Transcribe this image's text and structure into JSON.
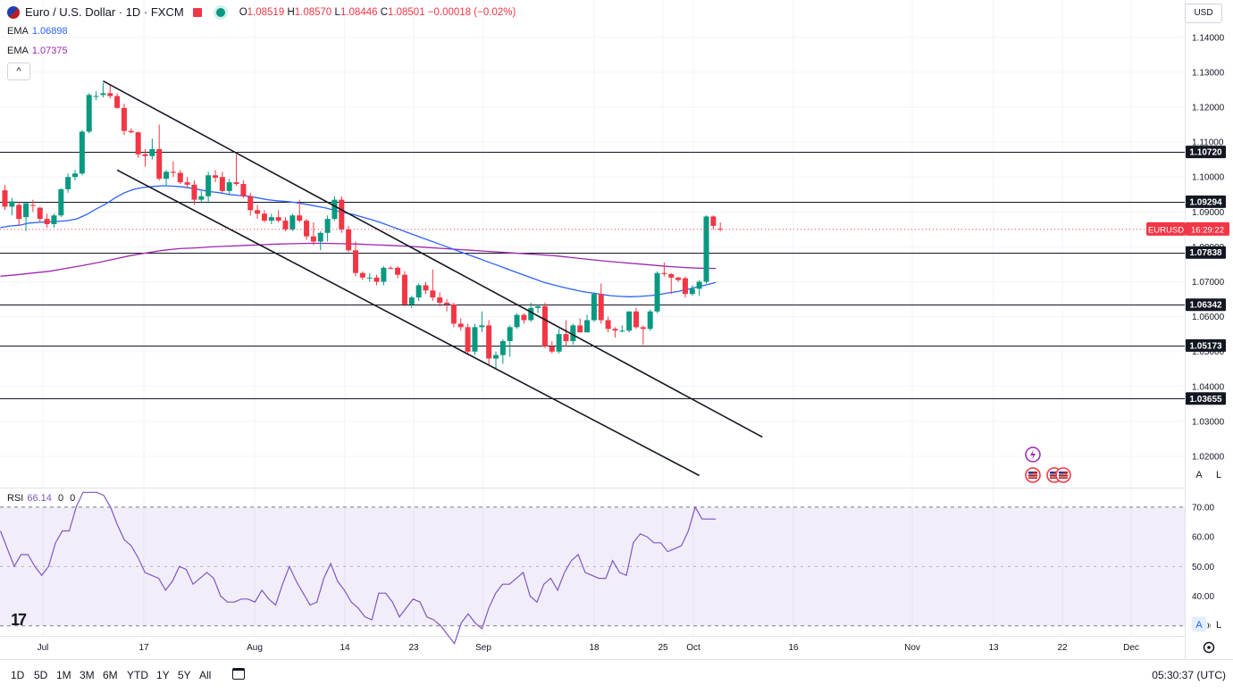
{
  "header": {
    "symbol": "Euro / U.S. Dollar · 1D · FXCM",
    "ohlc_o": "1.08519",
    "ohlc_h": "1.08570",
    "ohlc_l": "1.08446",
    "ohlc_c": "1.08501",
    "change": "−0.00018 (−0.02%)",
    "o_label": "O",
    "h_label": "H",
    "l_label": "L",
    "c_label": "C"
  },
  "ema1": {
    "label": "EMA",
    "value": "1.06898",
    "color": "#2962ff"
  },
  "ema2": {
    "label": "EMA",
    "value": "1.07375",
    "color": "#9c27b0"
  },
  "collapse_label": "^",
  "currency": "USD",
  "rsi_panel": {
    "label": "RSI",
    "value": "66.14",
    "extra1": "0",
    "extra2": "0"
  },
  "price_badge": {
    "symbol": "EURUSD",
    "countdown": "16:29:22"
  },
  "timeframes": [
    "1D",
    "5D",
    "1M",
    "3M",
    "6M",
    "YTD",
    "1Y",
    "5Y",
    "All"
  ],
  "clock": "05:30:37 (UTC)",
  "scale_buttons": {
    "auto": "A",
    "log": "L"
  },
  "logo": "17",
  "chart_data": {
    "type": "candlestick",
    "symbol": "EURUSD",
    "x_ticks": [
      "Jul",
      "17",
      "Aug",
      "14",
      "23",
      "Sep",
      "18",
      "25",
      "Oct",
      "16",
      "Nov",
      "13",
      "22",
      "Dec"
    ],
    "y_ticks": [
      "1.14000",
      "1.13000",
      "1.12000",
      "1.11000",
      "1.10000",
      "1.09000",
      "1.08000",
      "1.07000",
      "1.06000",
      "1.05000",
      "1.04000",
      "1.03000",
      "1.02000"
    ],
    "ylim": [
      1.0113,
      1.1507
    ],
    "horizontal_levels": [
      "1.10720",
      "1.09294",
      "1.07838",
      "1.06342",
      "1.05173",
      "1.03655"
    ],
    "candles": [
      {
        "o": 1.0962,
        "h": 1.0978,
        "l": 1.0905,
        "c": 1.0915
      },
      {
        "o": 1.0915,
        "h": 1.094,
        "l": 1.089,
        "c": 1.093
      },
      {
        "o": 1.092,
        "h": 1.093,
        "l": 1.086,
        "c": 1.088
      },
      {
        "o": 1.0885,
        "h": 1.0925,
        "l": 1.0845,
        "c": 1.0925
      },
      {
        "o": 1.092,
        "h": 1.0935,
        "l": 1.09,
        "c": 1.0918
      },
      {
        "o": 1.0912,
        "h": 1.0915,
        "l": 1.0872,
        "c": 1.088
      },
      {
        "o": 1.088,
        "h": 1.0895,
        "l": 1.0855,
        "c": 1.0865
      },
      {
        "o": 1.0865,
        "h": 1.0895,
        "l": 1.0855,
        "c": 1.089
      },
      {
        "o": 1.089,
        "h": 1.0968,
        "l": 1.0885,
        "c": 1.0965
      },
      {
        "o": 1.0965,
        "h": 1.101,
        "l": 1.0955,
        "c": 1.1
      },
      {
        "o": 1.1,
        "h": 1.102,
        "l": 1.099,
        "c": 1.101
      },
      {
        "o": 1.101,
        "h": 1.1135,
        "l": 1.1005,
        "c": 1.113
      },
      {
        "o": 1.113,
        "h": 1.124,
        "l": 1.1125,
        "c": 1.1235
      },
      {
        "o": 1.123,
        "h": 1.1245,
        "l": 1.122,
        "c": 1.1232
      },
      {
        "o": 1.1235,
        "h": 1.127,
        "l": 1.1228,
        "c": 1.124
      },
      {
        "o": 1.124,
        "h": 1.1265,
        "l": 1.1225,
        "c": 1.1232
      },
      {
        "o": 1.1232,
        "h": 1.124,
        "l": 1.1195,
        "c": 1.1198
      },
      {
        "o": 1.1198,
        "h": 1.121,
        "l": 1.112,
        "c": 1.1132
      },
      {
        "o": 1.1132,
        "h": 1.114,
        "l": 1.1125,
        "c": 1.1128
      },
      {
        "o": 1.1128,
        "h": 1.113,
        "l": 1.1055,
        "c": 1.1065
      },
      {
        "o": 1.1065,
        "h": 1.108,
        "l": 1.103,
        "c": 1.106
      },
      {
        "o": 1.106,
        "h": 1.111,
        "l": 1.105,
        "c": 1.108
      },
      {
        "o": 1.108,
        "h": 1.115,
        "l": 1.099,
        "c": 1.0995
      },
      {
        "o": 1.0995,
        "h": 1.102,
        "l": 1.0975,
        "c": 1.1015
      },
      {
        "o": 1.1015,
        "h": 1.1045,
        "l": 1.1,
        "c": 1.1012
      },
      {
        "o": 1.1012,
        "h": 1.102,
        "l": 1.098,
        "c": 1.0985
      },
      {
        "o": 1.0985,
        "h": 1.1,
        "l": 1.097,
        "c": 1.0978
      },
      {
        "o": 1.0978,
        "h": 1.099,
        "l": 1.092,
        "c": 1.0935
      },
      {
        "o": 1.0935,
        "h": 1.096,
        "l": 1.0925,
        "c": 1.0945
      },
      {
        "o": 1.0945,
        "h": 1.1015,
        "l": 1.0925,
        "c": 1.1005
      },
      {
        "o": 1.1005,
        "h": 1.102,
        "l": 1.0985,
        "c": 1.0998
      },
      {
        "o": 1.1,
        "h": 1.1015,
        "l": 1.0955,
        "c": 1.096
      },
      {
        "o": 1.096,
        "h": 1.0995,
        "l": 1.095,
        "c": 1.0985
      },
      {
        "o": 1.0985,
        "h": 1.1065,
        "l": 1.0975,
        "c": 1.098
      },
      {
        "o": 1.098,
        "h": 1.099,
        "l": 1.094,
        "c": 1.0945
      },
      {
        "o": 1.0945,
        "h": 1.0955,
        "l": 1.089,
        "c": 1.0905
      },
      {
        "o": 1.0905,
        "h": 1.092,
        "l": 1.088,
        "c": 1.0895
      },
      {
        "o": 1.0895,
        "h": 1.0905,
        "l": 1.087,
        "c": 1.0875
      },
      {
        "o": 1.0875,
        "h": 1.0895,
        "l": 1.0865,
        "c": 1.0885
      },
      {
        "o": 1.0885,
        "h": 1.0905,
        "l": 1.087,
        "c": 1.0875
      },
      {
        "o": 1.0875,
        "h": 1.0885,
        "l": 1.0845,
        "c": 1.085
      },
      {
        "o": 1.085,
        "h": 1.0895,
        "l": 1.0845,
        "c": 1.089
      },
      {
        "o": 1.089,
        "h": 1.0935,
        "l": 1.087,
        "c": 1.0875
      },
      {
        "o": 1.0875,
        "h": 1.088,
        "l": 1.082,
        "c": 1.083
      },
      {
        "o": 1.083,
        "h": 1.087,
        "l": 1.0805,
        "c": 1.0815
      },
      {
        "o": 1.0815,
        "h": 1.0845,
        "l": 1.079,
        "c": 1.084
      },
      {
        "o": 1.084,
        "h": 1.089,
        "l": 1.0815,
        "c": 1.088
      },
      {
        "o": 1.088,
        "h": 1.0945,
        "l": 1.0875,
        "c": 1.0935
      },
      {
        "o": 1.0935,
        "h": 1.0945,
        "l": 1.084,
        "c": 1.085
      },
      {
        "o": 1.085,
        "h": 1.086,
        "l": 1.0785,
        "c": 1.079
      },
      {
        "o": 1.079,
        "h": 1.0815,
        "l": 1.0715,
        "c": 1.0725
      },
      {
        "o": 1.0725,
        "h": 1.073,
        "l": 1.0705,
        "c": 1.0712
      },
      {
        "o": 1.0712,
        "h": 1.0725,
        "l": 1.07,
        "c": 1.0712
      },
      {
        "o": 1.0712,
        "h": 1.072,
        "l": 1.069,
        "c": 1.07
      },
      {
        "o": 1.07,
        "h": 1.0745,
        "l": 1.069,
        "c": 1.074
      },
      {
        "o": 1.074,
        "h": 1.0745,
        "l": 1.0735,
        "c": 1.0738
      },
      {
        "o": 1.074,
        "h": 1.0745,
        "l": 1.071,
        "c": 1.072
      },
      {
        "o": 1.072,
        "h": 1.073,
        "l": 1.063,
        "c": 1.0635
      },
      {
        "o": 1.0635,
        "h": 1.066,
        "l": 1.0625,
        "c": 1.0655
      },
      {
        "o": 1.0655,
        "h": 1.0695,
        "l": 1.0645,
        "c": 1.069
      },
      {
        "o": 1.069,
        "h": 1.07,
        "l": 1.0665,
        "c": 1.0675
      },
      {
        "o": 1.0675,
        "h": 1.0735,
        "l": 1.0645,
        "c": 1.0655
      },
      {
        "o": 1.0655,
        "h": 1.067,
        "l": 1.063,
        "c": 1.064
      },
      {
        "o": 1.064,
        "h": 1.065,
        "l": 1.0615,
        "c": 1.0635
      },
      {
        "o": 1.0635,
        "h": 1.064,
        "l": 1.057,
        "c": 1.058
      },
      {
        "o": 1.058,
        "h": 1.0595,
        "l": 1.056,
        "c": 1.057
      },
      {
        "o": 1.057,
        "h": 1.058,
        "l": 1.049,
        "c": 1.05
      },
      {
        "o": 1.05,
        "h": 1.058,
        "l": 1.049,
        "c": 1.057
      },
      {
        "o": 1.057,
        "h": 1.0615,
        "l": 1.0555,
        "c": 1.0575
      },
      {
        "o": 1.0575,
        "h": 1.059,
        "l": 1.046,
        "c": 1.048
      },
      {
        "o": 1.048,
        "h": 1.05,
        "l": 1.045,
        "c": 1.049
      },
      {
        "o": 1.049,
        "h": 1.0535,
        "l": 1.0465,
        "c": 1.053
      },
      {
        "o": 1.053,
        "h": 1.0575,
        "l": 1.0485,
        "c": 1.057
      },
      {
        "o": 1.057,
        "h": 1.061,
        "l": 1.0565,
        "c": 1.0605
      },
      {
        "o": 1.0605,
        "h": 1.061,
        "l": 1.058,
        "c": 1.059
      },
      {
        "o": 1.059,
        "h": 1.064,
        "l": 1.0585,
        "c": 1.0625
      },
      {
        "o": 1.0625,
        "h": 1.0635,
        "l": 1.061,
        "c": 1.063
      },
      {
        "o": 1.063,
        "h": 1.064,
        "l": 1.051,
        "c": 1.0515
      },
      {
        "o": 1.0515,
        "h": 1.053,
        "l": 1.0495,
        "c": 1.05
      },
      {
        "o": 1.05,
        "h": 1.0565,
        "l": 1.0495,
        "c": 1.055
      },
      {
        "o": 1.055,
        "h": 1.059,
        "l": 1.0515,
        "c": 1.053
      },
      {
        "o": 1.053,
        "h": 1.058,
        "l": 1.052,
        "c": 1.0575
      },
      {
        "o": 1.0575,
        "h": 1.0595,
        "l": 1.0555,
        "c": 1.0555
      },
      {
        "o": 1.0555,
        "h": 1.0605,
        "l": 1.0555,
        "c": 1.059
      },
      {
        "o": 1.059,
        "h": 1.067,
        "l": 1.0585,
        "c": 1.0665
      },
      {
        "o": 1.0665,
        "h": 1.0695,
        "l": 1.058,
        "c": 1.059
      },
      {
        "o": 1.059,
        "h": 1.06,
        "l": 1.0555,
        "c": 1.0565
      },
      {
        "o": 1.0565,
        "h": 1.057,
        "l": 1.054,
        "c": 1.056
      },
      {
        "o": 1.056,
        "h": 1.0575,
        "l": 1.0555,
        "c": 1.056
      },
      {
        "o": 1.056,
        "h": 1.0615,
        "l": 1.0555,
        "c": 1.0615
      },
      {
        "o": 1.0615,
        "h": 1.0625,
        "l": 1.0565,
        "c": 1.057
      },
      {
        "o": 1.057,
        "h": 1.0575,
        "l": 1.052,
        "c": 1.0565
      },
      {
        "o": 1.0565,
        "h": 1.062,
        "l": 1.056,
        "c": 1.0615
      },
      {
        "o": 1.0615,
        "h": 1.073,
        "l": 1.061,
        "c": 1.0725
      },
      {
        "o": 1.0725,
        "h": 1.0755,
        "l": 1.0715,
        "c": 1.0722
      },
      {
        "o": 1.0722,
        "h": 1.0725,
        "l": 1.0665,
        "c": 1.0712
      },
      {
        "o": 1.0712,
        "h": 1.0715,
        "l": 1.07,
        "c": 1.0705
      },
      {
        "o": 1.071,
        "h": 1.0715,
        "l": 1.0655,
        "c": 1.0665
      },
      {
        "o": 1.0665,
        "h": 1.069,
        "l": 1.066,
        "c": 1.068
      },
      {
        "o": 1.068,
        "h": 1.0705,
        "l": 1.066,
        "c": 1.07
      },
      {
        "o": 1.07,
        "h": 1.089,
        "l": 1.0695,
        "c": 1.0887
      },
      {
        "o": 1.0887,
        "h": 1.089,
        "l": 1.085,
        "c": 1.086
      },
      {
        "o": 1.0852,
        "h": 1.087,
        "l": 1.0845,
        "c": 1.085
      }
    ],
    "ema_fast": [
      1.0855,
      1.086,
      1.0862,
      1.0868,
      1.087,
      1.0872,
      1.0873,
      1.0875,
      1.088,
      1.0892,
      1.0908,
      1.0922,
      1.094,
      1.0955,
      1.0965,
      1.097,
      1.0973,
      1.0975,
      1.0974,
      1.0972,
      1.0968,
      1.0963,
      1.0958,
      1.0955,
      1.095,
      1.0947,
      1.0945,
      1.094,
      1.0935,
      1.0932,
      1.093,
      1.0927,
      1.0922,
      1.0917,
      1.0912,
      1.0905,
      1.0898,
      1.0893,
      1.0885,
      1.0877,
      1.0868,
      1.0858,
      1.0848,
      1.0838,
      1.0828,
      1.0818,
      1.0808,
      1.0798,
      1.0788,
      1.0778,
      1.0768,
      1.0758,
      1.0748,
      1.0738,
      1.0728,
      1.0718,
      1.0708,
      1.0698,
      1.0691,
      1.0684,
      1.0678,
      1.0672,
      1.0668,
      1.0664,
      1.066,
      1.0658,
      1.0657,
      1.0658,
      1.066,
      1.0663,
      1.0668,
      1.0672,
      1.0678,
      1.0685,
      1.0691,
      1.0698
    ],
    "ema_slow": [
      1.0716,
      1.072,
      1.0725,
      1.073,
      1.0738,
      1.0746,
      1.0755,
      1.0765,
      1.0775,
      1.0783,
      1.079,
      1.0795,
      1.0797,
      1.08,
      1.0802,
      1.0804,
      1.0806,
      1.0808,
      1.0809,
      1.081,
      1.081,
      1.0809,
      1.0808,
      1.0806,
      1.0804,
      1.0802,
      1.0799,
      1.0796,
      1.0793,
      1.079,
      1.0787,
      1.0784,
      1.0781,
      1.0778,
      1.0775,
      1.077,
      1.0765,
      1.076,
      1.0756,
      1.0752,
      1.0748,
      1.0744,
      1.0741,
      1.0739,
      1.0738
    ],
    "trendlines": [
      {
        "name": "channel-upper",
        "from": {
          "bar": 14,
          "price": 1.1275
        },
        "to": {
          "bar": 108,
          "price": 1.0255
        }
      },
      {
        "name": "channel-lower",
        "from": {
          "bar": 16,
          "price": 1.102
        },
        "to": {
          "bar": 99,
          "price": 1.0145
        }
      }
    ],
    "rsi": {
      "value": "66.14",
      "levels": [
        70,
        30
      ],
      "ticks": [
        "70.00",
        "60.00",
        "50.00",
        "40.00",
        "30.00"
      ],
      "ylim": [
        26.6,
        76
      ],
      "values": [
        62,
        56,
        50,
        54,
        54,
        50,
        47,
        50,
        58,
        62,
        62,
        70,
        75,
        75,
        75,
        74,
        70,
        64,
        59,
        57,
        53,
        48,
        47,
        46,
        42,
        45,
        50,
        49,
        44,
        46,
        48,
        46,
        40,
        38,
        38,
        39,
        39,
        38,
        42,
        39,
        37,
        44,
        50,
        45,
        41,
        37,
        38,
        46,
        51,
        45,
        42,
        38,
        36,
        33,
        32,
        41,
        41,
        38,
        33,
        36,
        39,
        38,
        33,
        32,
        30,
        27,
        24,
        31,
        34,
        31,
        29,
        36,
        41,
        44,
        44,
        46,
        48,
        40,
        38,
        44,
        46,
        42,
        48,
        52,
        54,
        48,
        47,
        46,
        46,
        52,
        48,
        47,
        58,
        61,
        60,
        58,
        58,
        55,
        56,
        57,
        62,
        70,
        66,
        66,
        66
      ]
    }
  }
}
